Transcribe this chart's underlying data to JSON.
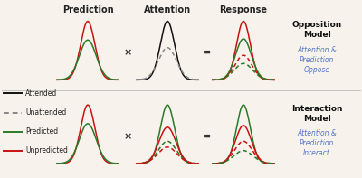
{
  "title_top": [
    "Prediction",
    "Attention",
    "Response"
  ],
  "model_labels": [
    "Opposition\nModel",
    "Interaction\nModel"
  ],
  "model_sublabels": [
    "Attention &\nPrediction\nOppose",
    "Attention &\nPrediction\nInteract"
  ],
  "legend_items": [
    {
      "color": "#111111",
      "ls": "solid",
      "label": "Attended"
    },
    {
      "color": "#888888",
      "ls": "dashed",
      "label": "Unattended"
    },
    {
      "color": "#2a7a2a",
      "ls": "solid",
      "label": "Predicted"
    },
    {
      "color": "#cc1111",
      "ls": "solid",
      "label": "Unpredicted"
    }
  ],
  "bg_color": "#f7f3ec",
  "model_label_color": "#111111",
  "model_sublabel_color": "#5577cc",
  "operator_color": "#333333",
  "row0": {
    "pred": {
      "curves": [
        {
          "color": "#cc1111",
          "ls": "solid",
          "sigma": 0.72,
          "amp": 1.0
        },
        {
          "color": "#2a7a2a",
          "ls": "solid",
          "sigma": 0.85,
          "amp": 0.68
        }
      ]
    },
    "attn": {
      "curves": [
        {
          "color": "#111111",
          "ls": "solid",
          "sigma": 0.72,
          "amp": 1.0
        },
        {
          "color": "#888888",
          "ls": "dashed",
          "sigma": 0.9,
          "amp": 0.55
        }
      ]
    },
    "resp": {
      "curves": [
        {
          "color": "#cc1111",
          "ls": "solid",
          "sigma": 0.7,
          "amp": 1.0
        },
        {
          "color": "#2a7a2a",
          "ls": "solid",
          "sigma": 0.8,
          "amp": 0.7
        },
        {
          "color": "#cc1111",
          "ls": "dashed",
          "sigma": 0.85,
          "amp": 0.42
        },
        {
          "color": "#2a7a2a",
          "ls": "dashed",
          "sigma": 0.92,
          "amp": 0.28
        }
      ]
    }
  },
  "row1": {
    "pred": {
      "curves": [
        {
          "color": "#cc1111",
          "ls": "solid",
          "sigma": 0.72,
          "amp": 1.0
        },
        {
          "color": "#2a7a2a",
          "ls": "solid",
          "sigma": 0.85,
          "amp": 0.68
        }
      ]
    },
    "attn": {
      "curves": [
        {
          "color": "#2a7a2a",
          "ls": "solid",
          "sigma": 0.72,
          "amp": 1.0
        },
        {
          "color": "#cc1111",
          "ls": "solid",
          "sigma": 0.85,
          "amp": 0.62
        },
        {
          "color": "#2a7a2a",
          "ls": "dashed",
          "sigma": 0.9,
          "amp": 0.38
        },
        {
          "color": "#cc1111",
          "ls": "dashed",
          "sigma": 0.95,
          "amp": 0.28
        }
      ]
    },
    "resp": {
      "curves": [
        {
          "color": "#2a7a2a",
          "ls": "solid",
          "sigma": 0.7,
          "amp": 1.0
        },
        {
          "color": "#cc1111",
          "ls": "solid",
          "sigma": 0.8,
          "amp": 0.65
        },
        {
          "color": "#cc1111",
          "ls": "dashed",
          "sigma": 0.88,
          "amp": 0.38
        },
        {
          "color": "#2a7a2a",
          "ls": "dashed",
          "sigma": 0.95,
          "amp": 0.22
        }
      ]
    }
  }
}
